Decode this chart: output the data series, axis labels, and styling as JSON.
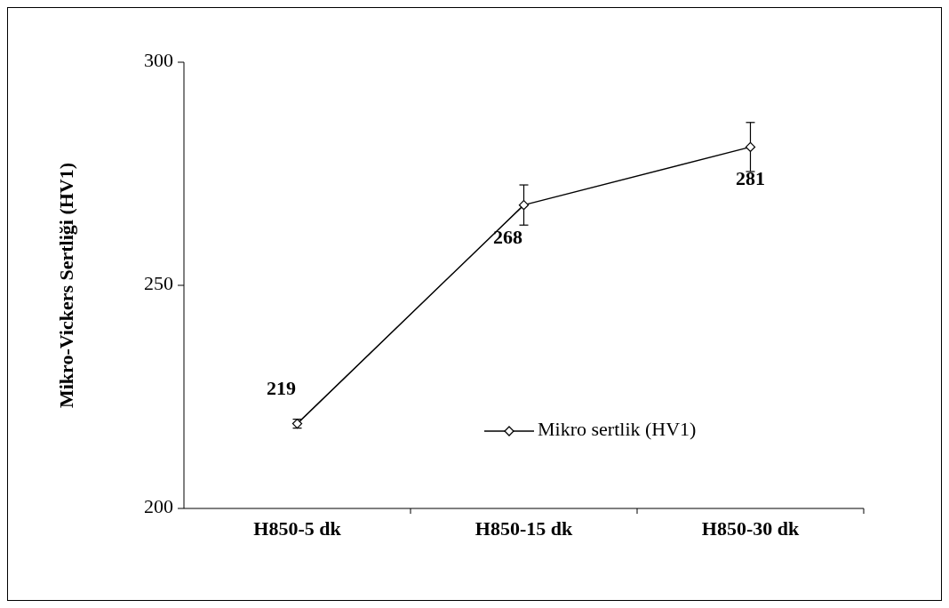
{
  "chart_data": {
    "type": "line",
    "ylabel": "Mikro-Vickers Sertliği (HV1)",
    "categories": [
      "H850-5 dk",
      "H850-15 dk",
      "H850-30 dk"
    ],
    "series": [
      {
        "name": "Mikro sertlik (HV1)",
        "color": "#000000",
        "values": [
          219,
          268,
          281
        ],
        "errors": [
          1,
          4.5,
          5.5
        ]
      }
    ],
    "ylim": [
      200,
      300
    ],
    "yticks": [
      200,
      250,
      300
    ],
    "grid": false,
    "legend": "bottom right",
    "marker": "diamond",
    "line_style": "solid",
    "data_labels": true
  }
}
